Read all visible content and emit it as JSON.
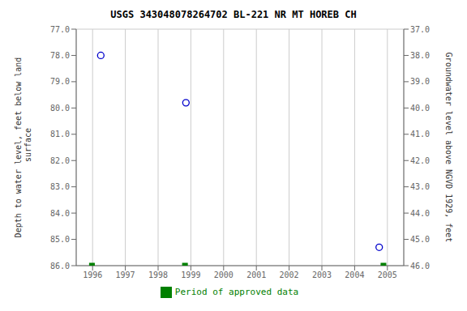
{
  "chart_data": {
    "type": "scatter",
    "title": "USGS 343048078264702 BL-221 NR MT HOREB CH",
    "xlim": [
      1995.5,
      2005.5
    ],
    "xticks": [
      1996,
      1997,
      1998,
      1999,
      2000,
      2001,
      2002,
      2003,
      2004,
      2005
    ],
    "ylim": [
      86.0,
      77.0
    ],
    "yticks": [
      {
        "value": 77.0,
        "label": "77.0"
      },
      {
        "value": 78.0,
        "label": "78.0"
      },
      {
        "value": 79.0,
        "label": "79.0"
      },
      {
        "value": 80.0,
        "label": "80.0"
      },
      {
        "value": 81.0,
        "label": "81.0"
      },
      {
        "value": 82.0,
        "label": "82.0"
      },
      {
        "value": 83.0,
        "label": "83.0"
      },
      {
        "value": 84.0,
        "label": "84.0"
      },
      {
        "value": 85.0,
        "label": "85.0"
      },
      {
        "value": 86.0,
        "label": "86.0"
      }
    ],
    "y2lim": [
      46.0,
      37.0
    ],
    "y2ticks": [
      {
        "value": 46.0,
        "label": "46.0"
      },
      {
        "value": 45.0,
        "label": "45.0"
      },
      {
        "value": 44.0,
        "label": "44.0"
      },
      {
        "value": 43.0,
        "label": "43.0"
      },
      {
        "value": 42.0,
        "label": "42.0"
      },
      {
        "value": 41.0,
        "label": "41.0"
      },
      {
        "value": 40.0,
        "label": "40.0"
      },
      {
        "value": 39.0,
        "label": "39.0"
      },
      {
        "value": 38.0,
        "label": "38.0"
      },
      {
        "value": 37.0,
        "label": "37.0"
      }
    ],
    "ylabel": "Depth to water level, feet below land\n surface",
    "y2label": "Groundwater level above NGVD 1929, feet",
    "grid": true,
    "legend": "bottom",
    "series": [
      {
        "x": [
          1996.25,
          1998.85,
          2004.75
        ],
        "values": [
          78.0,
          79.8,
          85.3
        ],
        "color": "#0000cc",
        "marker": "circle"
      },
      {
        "name": "Period of approved data",
        "x": [
          1995.98,
          1998.82,
          2004.88
        ],
        "values": [
          86.0,
          86.0,
          86.0
        ],
        "color": "#008000",
        "marker": "square"
      }
    ]
  }
}
